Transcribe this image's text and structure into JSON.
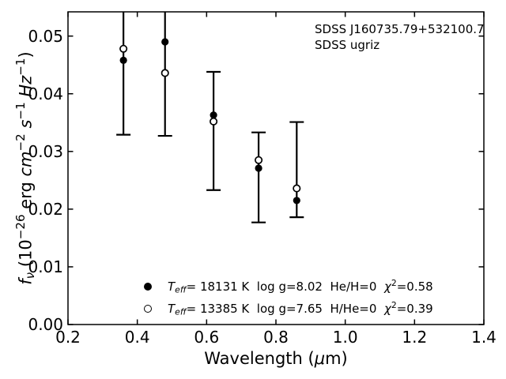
{
  "annotation": {
    "line1": "SDSS J160735.79+532100.7",
    "line2": "SDSS ugriz"
  },
  "axes": {
    "xlabel_parts": [
      {
        "t": "Wavelength ("
      },
      {
        "t": "μ",
        "s": "it"
      },
      {
        "t": "m)"
      }
    ],
    "ylabel_parts": [
      {
        "t": "f",
        "s": "it"
      },
      {
        "t": "ν",
        "s": "itsub"
      },
      {
        "t": " (10"
      },
      {
        "t": "−26",
        "s": "sup"
      },
      {
        "t": " erg "
      },
      {
        "t": "cm",
        "s": "it"
      },
      {
        "t": "−2",
        "s": "sup"
      },
      {
        "t": " "
      },
      {
        "t": "s",
        "s": "it"
      },
      {
        "t": "−1",
        "s": "sup"
      },
      {
        "t": " "
      },
      {
        "t": "Hz",
        "s": "it"
      },
      {
        "t": "−1",
        "s": "sup"
      },
      {
        "t": ")"
      }
    ]
  },
  "legend": {
    "entries": [
      {
        "marker": "filled-circle",
        "parts": [
          {
            "t": "T",
            "s": "it"
          },
          {
            "t": "eff",
            "s": "itsub"
          },
          {
            "t": "= 18131 K  log g=8.02  He/H=0  "
          },
          {
            "t": "χ",
            "s": "it"
          },
          {
            "t": "2",
            "s": "sup"
          },
          {
            "t": "=0.58"
          }
        ]
      },
      {
        "marker": "open-circle",
        "parts": [
          {
            "t": "T",
            "s": "it"
          },
          {
            "t": "eff",
            "s": "itsub"
          },
          {
            "t": "= 13385 K  log g=7.65  H/He=0  "
          },
          {
            "t": "χ",
            "s": "it"
          },
          {
            "t": "2",
            "s": "sup"
          },
          {
            "t": "=0.39"
          }
        ]
      }
    ]
  },
  "chart_data": {
    "type": "scatter",
    "title": "",
    "xlabel": "Wavelength (μm)",
    "ylabel": "f_ν (10^−26 erg cm^−2 s^−1 Hz^−1)",
    "xlim": [
      0.2,
      1.4
    ],
    "ylim": [
      0,
      0.0542
    ],
    "grid": false,
    "legend_position": "lower center",
    "x_ticks": [
      0.2,
      0.4,
      0.6,
      0.8,
      1.0,
      1.2,
      1.4
    ],
    "x_tick_labels": [
      "0.2",
      "0.4",
      "0.6",
      "0.8",
      "1.0",
      "1.2",
      "1.4"
    ],
    "y_ticks": [
      0.0,
      0.01,
      0.02,
      0.03,
      0.04,
      0.05
    ],
    "y_tick_labels": [
      "0.00",
      "0.01",
      "0.02",
      "0.03",
      "0.04",
      "0.05"
    ],
    "x": [
      0.36,
      0.48,
      0.62,
      0.75,
      0.86
    ],
    "x_bands": [
      "u",
      "g",
      "r",
      "i",
      "z"
    ],
    "series": [
      {
        "name": "Teff= 18131 K  log g=8.02  He/H=0  chi2=0.58",
        "teff_k": 18131,
        "log_g": 8.02,
        "composition": "He/H=0",
        "chi2": 0.58,
        "marker": "filled-circle",
        "values": [
          0.0458,
          0.049,
          0.0363,
          0.0271,
          0.0215
        ]
      },
      {
        "name": "Teff= 13385 K  log g=7.65  H/He=0  chi2=0.39",
        "teff_k": 13385,
        "log_g": 7.65,
        "composition": "H/He=0",
        "chi2": 0.39,
        "marker": "open-circle",
        "values": [
          0.0478,
          0.0436,
          0.0352,
          0.0285,
          0.0236
        ]
      }
    ],
    "error_bars": {
      "x": [
        0.36,
        0.48,
        0.62,
        0.75,
        0.86
      ],
      "low": [
        0.0329,
        0.0327,
        0.0233,
        0.0177,
        0.0186
      ],
      "high": [
        null,
        null,
        0.0438,
        0.0333,
        0.0351
      ],
      "high_clipped_at_top": [
        true,
        true,
        false,
        false,
        false
      ]
    },
    "annotations": [
      "SDSS J160735.79+532100.7",
      "SDSS ugriz"
    ]
  },
  "colors": {
    "foreground": "#000000",
    "background": "#ffffff"
  }
}
